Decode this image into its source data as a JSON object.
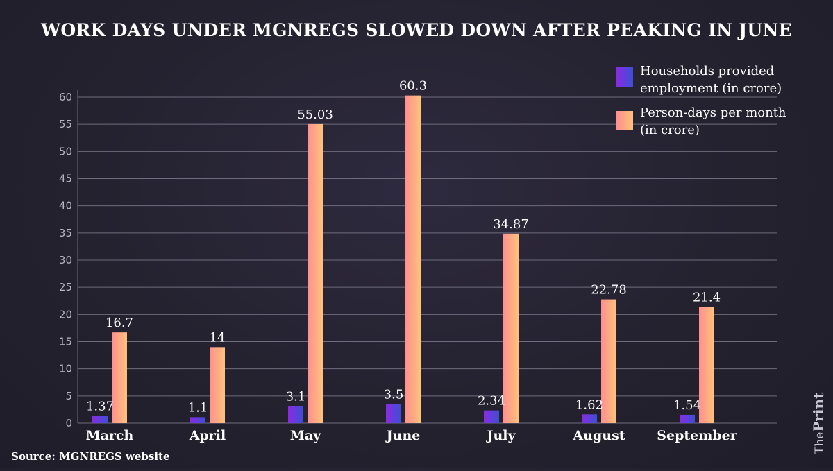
{
  "chart_data": {
    "type": "bar",
    "title": "WORK DAYS UNDER MGNREGS SLOWED DOWN AFTER PEAKING IN JUNE",
    "categories": [
      "March",
      "April",
      "May",
      "June",
      "July",
      "August",
      "September"
    ],
    "series": [
      {
        "name": "Households provided employment (in crore)",
        "legend_lines": [
          "Households provided",
          "employment (in crore)"
        ],
        "values": [
          1.37,
          1.1,
          3.1,
          3.5,
          2.34,
          1.62,
          1.54
        ],
        "labels": [
          "1.37",
          "1.1",
          "3.1",
          "3.5",
          "2.34",
          "1.62",
          "1.54"
        ],
        "color_start": "#8a2be2",
        "color_end": "#3d4fd6"
      },
      {
        "name": "Person-days per month (in crore)",
        "legend_lines": [
          "Person-days per month",
          "(in crore)"
        ],
        "values": [
          16.7,
          14,
          55.03,
          60.3,
          34.87,
          22.78,
          21.4
        ],
        "labels": [
          "16.7",
          "14",
          "55.03",
          "60.3",
          "34.87",
          "22.78",
          "21.4"
        ],
        "color_start": "#ff8f8f",
        "color_end": "#ffc27a"
      }
    ],
    "ylim": [
      0,
      60
    ],
    "yticks": [
      0,
      5,
      10,
      15,
      20,
      25,
      30,
      35,
      40,
      45,
      50,
      55,
      60
    ],
    "grid": true,
    "legend": "top-right",
    "xlabel": "",
    "ylabel": ""
  },
  "source": "Source: MGNREGS website",
  "brand": {
    "part1": "The",
    "part2": "Print"
  },
  "colors": {
    "grid": "#6f6b7d",
    "tick": "#b9b6c4",
    "text": "#ffffff"
  }
}
